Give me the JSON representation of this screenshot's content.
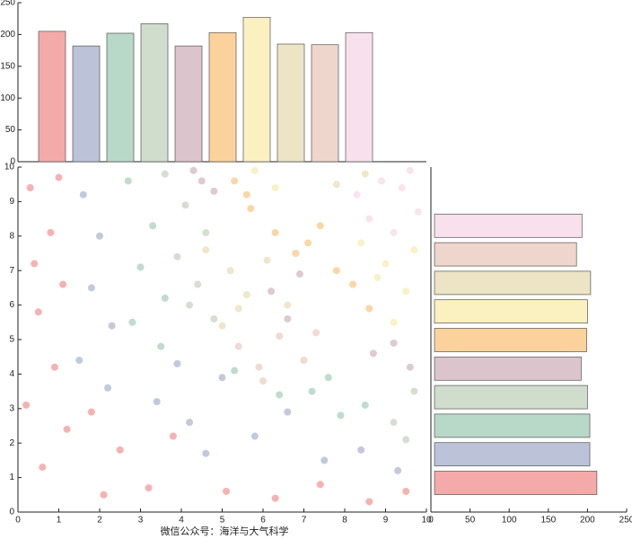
{
  "chart_data": [
    {
      "type": "bar",
      "categories": [
        null,
        null,
        null,
        null,
        null,
        null,
        null,
        null,
        null,
        null
      ],
      "values": [
        205,
        182,
        202,
        217,
        182,
        203,
        227,
        185,
        184,
        203
      ],
      "colors": [
        "#f4aaa8",
        "#bcc3d8",
        "#b8d8c8",
        "#d0dccc",
        "#dcc4cc",
        "#fcd29c",
        "#faf0c0",
        "#ece4c4",
        "#eed6cc",
        "#f8e0ec"
      ],
      "ylim": [
        0,
        250
      ],
      "yticks": [
        0,
        50,
        100,
        150,
        200,
        250
      ]
    },
    {
      "type": "barh",
      "categories": [
        null,
        null,
        null,
        null,
        null,
        null,
        null,
        null,
        null,
        null
      ],
      "values": [
        212,
        203,
        203,
        200,
        192,
        199,
        200,
        204,
        186,
        193
      ],
      "colors": [
        "#f4aaa8",
        "#bcc3d8",
        "#b8d8c8",
        "#d0dccc",
        "#dcc4cc",
        "#fcd29c",
        "#faf0c0",
        "#ece4c4",
        "#eed6cc",
        "#f8e0ec"
      ],
      "xlim": [
        0,
        250
      ],
      "xticks": [
        0,
        50,
        100,
        150,
        200,
        250
      ]
    },
    {
      "type": "scatter",
      "note_text": "微信公众号：海洋与大气科学",
      "xlim": [
        0,
        10
      ],
      "ylim": [
        0,
        10
      ],
      "xticks": [
        0,
        1,
        2,
        3,
        4,
        5,
        6,
        7,
        8,
        9,
        10
      ],
      "yticks": [
        0,
        1,
        2,
        3,
        4,
        5,
        6,
        7,
        8,
        9,
        10
      ],
      "series": [
        {
          "color": "#f4aaa8",
          "x": [
            0.3,
            0.8,
            1.1,
            0.5,
            0.9,
            0.2,
            1.2,
            0.6,
            1.8,
            2.5,
            3.2,
            2.1,
            3.8,
            5.1,
            6.3,
            7.4,
            8.6,
            9.5,
            0.4,
            1.0
          ],
          "y": [
            9.4,
            8.1,
            6.6,
            5.8,
            4.2,
            3.1,
            2.4,
            1.3,
            2.9,
            1.8,
            0.7,
            0.5,
            2.2,
            0.6,
            0.4,
            0.8,
            0.3,
            0.6,
            7.2,
            9.7
          ]
        },
        {
          "color": "#bcc3d8",
          "x": [
            1.6,
            2.0,
            1.8,
            2.3,
            1.5,
            2.2,
            3.4,
            4.2,
            5.0,
            5.8,
            6.6,
            3.9,
            7.5,
            8.4,
            9.3,
            4.6
          ],
          "y": [
            9.2,
            8.0,
            6.5,
            5.4,
            4.4,
            3.6,
            3.2,
            2.6,
            3.9,
            2.2,
            2.9,
            4.3,
            1.5,
            1.8,
            1.2,
            1.7
          ]
        },
        {
          "color": "#b8d8c8",
          "x": [
            2.7,
            3.3,
            3.0,
            3.6,
            2.8,
            3.5,
            7.2,
            7.9,
            8.5,
            7.6,
            6.4,
            5.3
          ],
          "y": [
            9.6,
            8.3,
            7.1,
            6.2,
            5.5,
            4.8,
            3.5,
            2.8,
            3.1,
            3.9,
            3.4,
            4.1
          ]
        },
        {
          "color": "#d0dccc",
          "x": [
            3.6,
            4.1,
            4.6,
            3.9,
            4.4,
            4.8,
            9.2,
            9.7,
            9.5,
            4.2
          ],
          "y": [
            9.8,
            8.9,
            8.1,
            7.4,
            6.6,
            5.6,
            2.6,
            3.5,
            2.1,
            6.0
          ]
        },
        {
          "color": "#dcc4cc",
          "x": [
            4.3,
            4.8,
            6.2,
            6.6,
            6.9,
            8.7,
            9.2,
            4.5,
            9.6
          ],
          "y": [
            9.9,
            9.3,
            6.4,
            5.6,
            6.9,
            4.6,
            4.9,
            9.6,
            4.2
          ]
        },
        {
          "color": "#fcd29c",
          "x": [
            5.3,
            5.7,
            6.3,
            6.8,
            7.4,
            7.8,
            8.2,
            8.6,
            7.1,
            5.6
          ],
          "y": [
            9.6,
            8.8,
            8.1,
            7.5,
            8.3,
            7.0,
            6.6,
            5.9,
            7.8,
            9.2
          ]
        },
        {
          "color": "#faf0c0",
          "x": [
            5.8,
            6.3,
            8.4,
            9.0,
            9.5,
            9.2,
            9.7,
            8.8
          ],
          "y": [
            9.9,
            9.4,
            7.8,
            7.2,
            6.4,
            5.5,
            7.6,
            6.8
          ]
        },
        {
          "color": "#ece4c4",
          "x": [
            4.6,
            5.2,
            5.6,
            6.1,
            5.0,
            6.6,
            7.8,
            8.5,
            5.4
          ],
          "y": [
            7.6,
            7.0,
            6.3,
            7.3,
            5.4,
            6.0,
            9.5,
            9.8,
            5.9
          ]
        },
        {
          "color": "#eed6cc",
          "x": [
            5.4,
            5.9,
            6.4,
            7.0,
            6.0,
            7.3
          ],
          "y": [
            4.8,
            4.2,
            5.1,
            4.4,
            3.8,
            5.2
          ]
        },
        {
          "color": "#f8e0ec",
          "x": [
            8.3,
            8.9,
            9.4,
            9.8,
            8.6,
            9.2,
            9.6
          ],
          "y": [
            9.2,
            9.6,
            9.4,
            8.7,
            8.5,
            8.1,
            9.9
          ]
        }
      ]
    }
  ]
}
